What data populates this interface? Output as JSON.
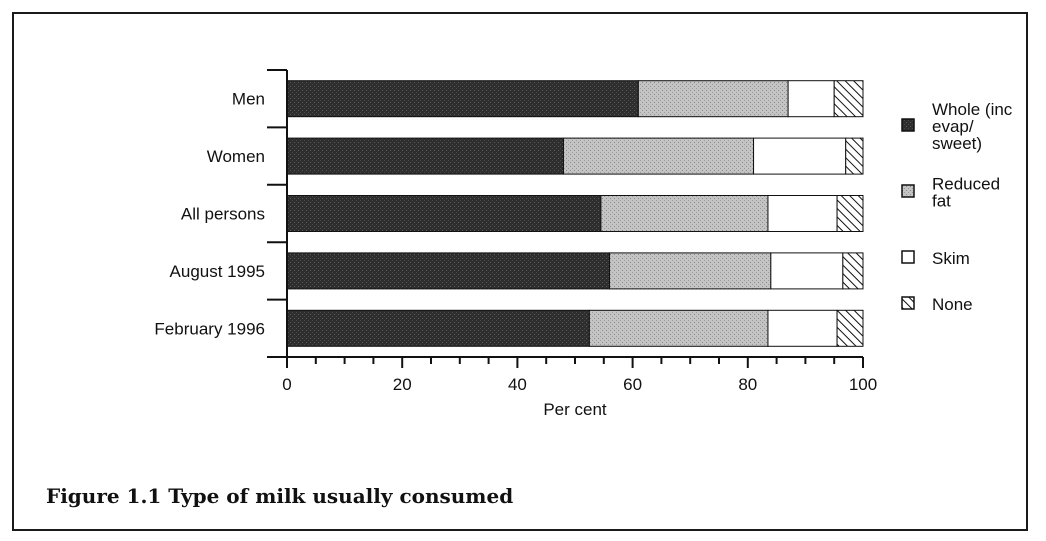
{
  "caption": "Figure 1.1 Type of milk usually consumed",
  "chart_data": {
    "type": "bar",
    "orientation": "horizontal",
    "stacked": true,
    "categories": [
      "Men",
      "Women",
      "All persons",
      "August 1995",
      "February 1996"
    ],
    "series": [
      {
        "name": "Whole (inc evap/ sweet)",
        "legend_lines": [
          "Whole (inc",
          "evap/",
          "sweet)"
        ],
        "values": [
          61,
          48,
          54.5,
          56,
          52.5
        ],
        "color": "#2b2b2b",
        "pattern": "dense-dark"
      },
      {
        "name": "Reduced fat",
        "legend_lines": [
          "Reduced",
          "fat"
        ],
        "values": [
          26,
          33,
          29,
          28,
          31
        ],
        "color": "#b8b8b8",
        "pattern": "light-stipple"
      },
      {
        "name": "Skim",
        "legend_lines": [
          "Skim"
        ],
        "values": [
          8,
          16,
          12,
          12.5,
          12
        ],
        "color": "#ffffff",
        "pattern": "none"
      },
      {
        "name": "None",
        "legend_lines": [
          "None"
        ],
        "values": [
          5,
          3,
          4.5,
          3.5,
          4.5
        ],
        "color": "#ffffff",
        "pattern": "diagonal-hatch"
      }
    ],
    "xlabel": "Per cent",
    "ylabel": "",
    "xlim": [
      0,
      100
    ],
    "xticks": [
      0,
      20,
      40,
      60,
      80,
      100
    ],
    "minor_tick_step": 5,
    "legend_position": "right",
    "grid": false
  }
}
